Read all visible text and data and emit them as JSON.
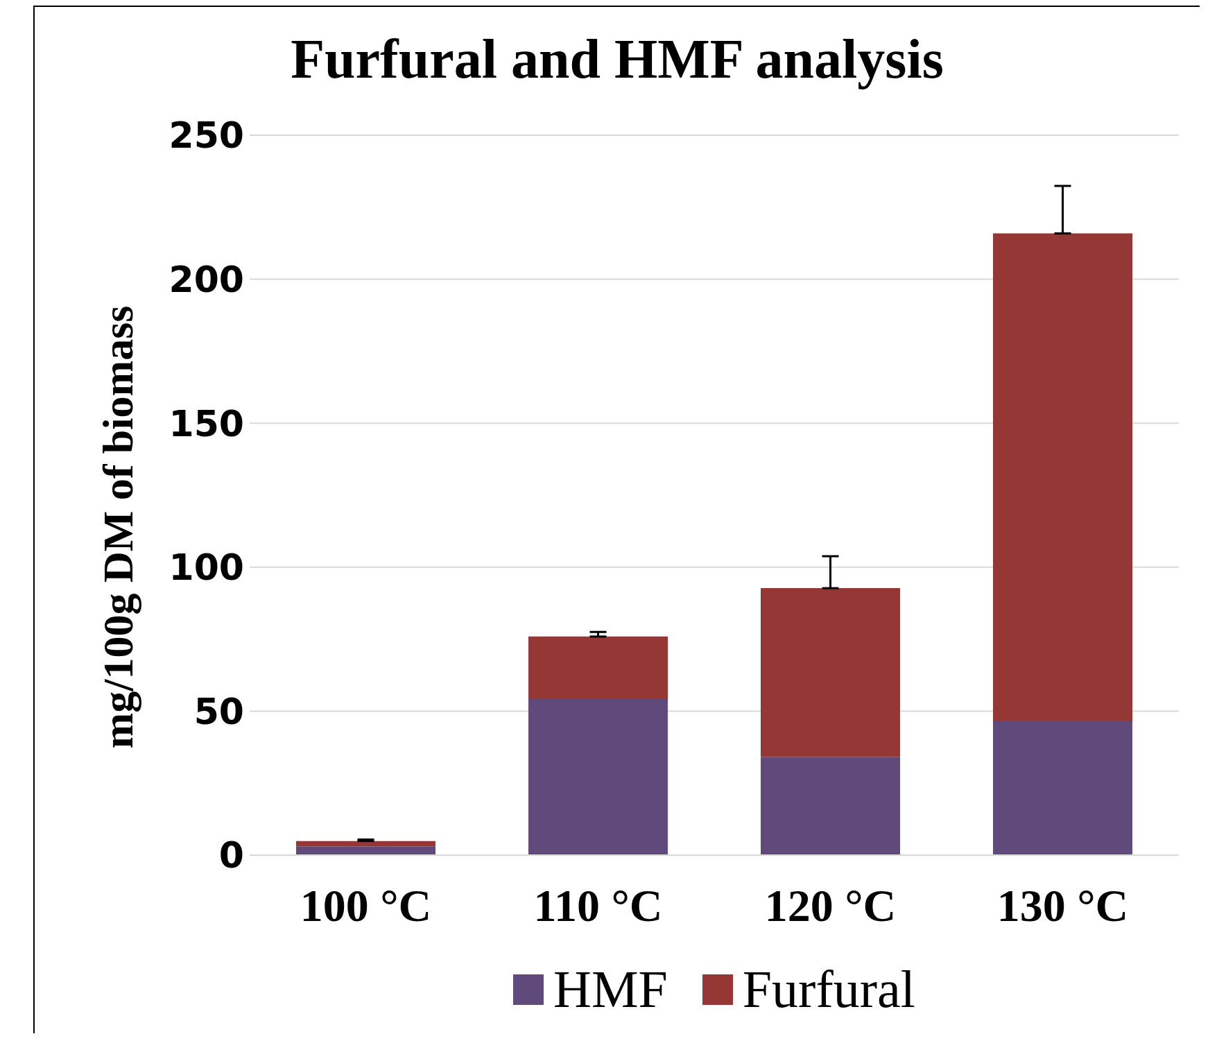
{
  "chart_data": {
    "type": "bar",
    "title": "Furfural and HMF analysis",
    "ylabel": "mg/100g DM of biomass",
    "categories": [
      "100 °C",
      "110 °C",
      "120 °C",
      "130 °C"
    ],
    "stacked": true,
    "series": [
      {
        "name": "HMF",
        "color": "#604a7b",
        "values": [
          3.1,
          54.2,
          34.1,
          46.5
        ]
      },
      {
        "name": "Furfural",
        "color": "#953735",
        "values": [
          1.8,
          21.7,
          58.6,
          169.4
        ],
        "errors": [
          [
            4.9,
            5.4
          ],
          [
            75.9,
            77.5
          ],
          [
            92.7,
            103.8
          ],
          [
            215.9,
            232.4
          ]
        ]
      }
    ],
    "ylim": [
      0,
      250
    ],
    "yticks": [
      0,
      50,
      100,
      150,
      200,
      250
    ],
    "grid": "y",
    "legend": "bottom"
  }
}
